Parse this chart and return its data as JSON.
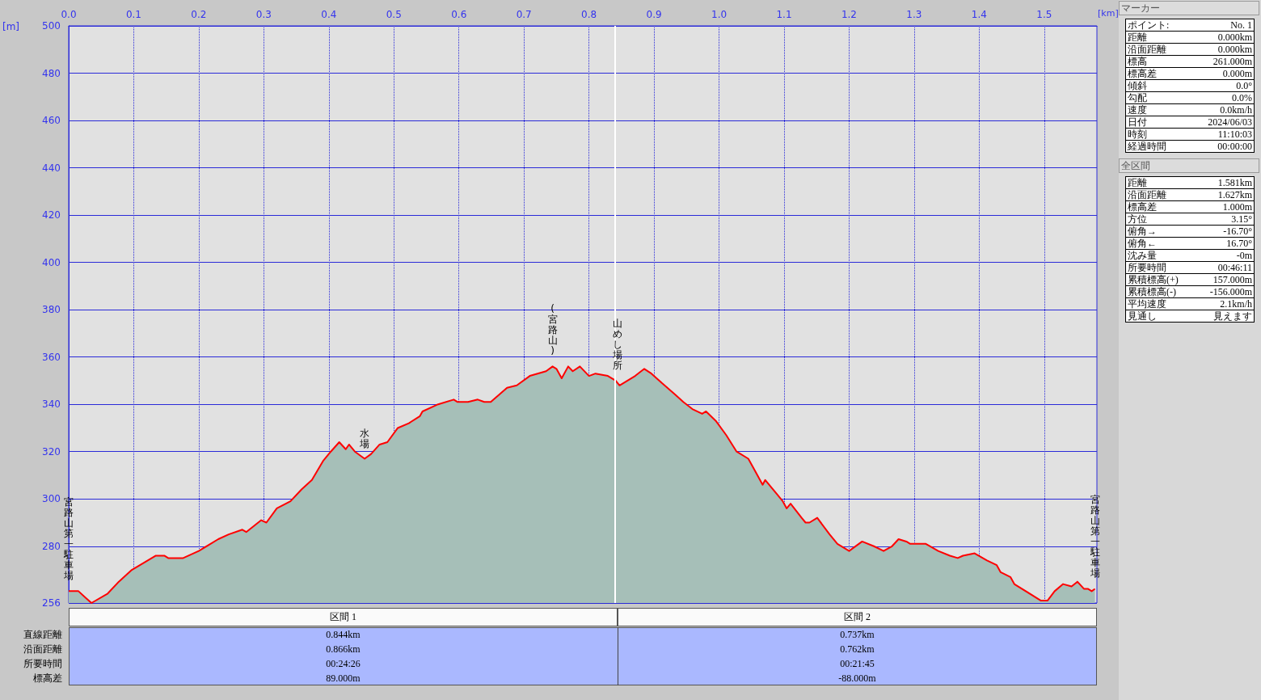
{
  "chart_data": [
    {
      "type": "area",
      "xlabel": "[km]",
      "ylabel": "[m]",
      "xlim": [
        0,
        1.581
      ],
      "ylim": [
        256,
        500
      ],
      "xticks": [
        {
          "value": 0,
          "label": "0.0"
        },
        0.1,
        0.2,
        0.3,
        0.4,
        0.5,
        0.6,
        0.7,
        0.8,
        0.9,
        {
          "value": 1,
          "label": "1.0"
        },
        1.1,
        1.2,
        1.3,
        1.4,
        1.5
      ],
      "yticks": [
        256,
        280,
        300,
        320,
        340,
        360,
        380,
        400,
        420,
        440,
        460,
        480,
        500
      ],
      "grid": true,
      "series": [
        {
          "color": "#ff0000",
          "x": [
            0,
            0.015,
            0.027,
            0.035,
            0.06,
            0.077,
            0.097,
            0.134,
            0.147,
            0.153,
            0.176,
            0.2,
            0.23,
            0.246,
            0.267,
            0.273,
            0.296,
            0.304,
            0.32,
            0.341,
            0.358,
            0.374,
            0.391,
            0.403,
            0.416,
            0.426,
            0.431,
            0.44,
            0.455,
            0.465,
            0.478,
            0.49,
            0.506,
            0.523,
            0.54,
            0.544,
            0.568,
            0.592,
            0.598,
            0.614,
            0.629,
            0.639,
            0.649,
            0.674,
            0.689,
            0.709,
            0.734,
            0.744,
            0.75,
            0.758,
            0.768,
            0.775,
            0.786,
            0.8,
            0.81,
            0.829,
            0.841,
            0.847,
            0.871,
            0.885,
            0.896,
            0.912,
            0.933,
            0.945,
            0.959,
            0.974,
            0.98,
            0.995,
            1.011,
            1.027,
            1.045,
            1.057,
            1.067,
            1.071,
            1.086,
            1.098,
            1.104,
            1.11,
            1.127,
            1.133,
            1.139,
            1.151,
            1.17,
            1.182,
            1.2,
            1.22,
            1.238,
            1.253,
            1.266,
            1.276,
            1.288,
            1.294,
            1.318,
            1.337,
            1.355,
            1.367,
            1.375,
            1.393,
            1.412,
            1.427,
            1.433,
            1.448,
            1.454,
            1.495,
            1.505,
            1.516,
            1.529,
            1.542,
            1.551,
            1.561,
            1.567,
            1.573,
            1.578
          ],
          "values": [
            261,
            261,
            258,
            256,
            260,
            265,
            270,
            276,
            276,
            275,
            275,
            278,
            283,
            285,
            287,
            286,
            291,
            290,
            296,
            299,
            304,
            308,
            316,
            320,
            324,
            321,
            323,
            320,
            317,
            319,
            323,
            324,
            330,
            332,
            335,
            337,
            340,
            342,
            341,
            341,
            342,
            341,
            341,
            347,
            348,
            352,
            354,
            356,
            355,
            351,
            356,
            354,
            356,
            352,
            353,
            352,
            350,
            348,
            352,
            355,
            353,
            349,
            344,
            341,
            338,
            336,
            337,
            333,
            327,
            320,
            317,
            311,
            306,
            308,
            303,
            299,
            296,
            298,
            292,
            290,
            290,
            292,
            285,
            281,
            278,
            282,
            280,
            278,
            280,
            283,
            282,
            281,
            281,
            278,
            276,
            275,
            276,
            277,
            274,
            272,
            269,
            267,
            264,
            257,
            257,
            261,
            264,
            263,
            265,
            262,
            262,
            261,
            262
          ]
        }
      ],
      "ref_lines": [
        {
          "axis": "x",
          "value": 0.844,
          "color": "#ffffff"
        }
      ],
      "annotations": [
        {
          "text": "宮路山第一駐車場",
          "x": 0,
          "y": 261
        },
        {
          "text": "水場",
          "x": 0.455,
          "y": 317
        },
        {
          "text": "(宮路山)",
          "x": 0.744,
          "y": 356
        },
        {
          "text": "山めし場所",
          "x": 0.844,
          "y": 350
        },
        {
          "text": "宮路山第一駐車場",
          "x": 1.578,
          "y": 262
        }
      ]
    },
    {
      "type": "other",
      "categories": [
        "区間 1",
        "区間 2"
      ],
      "y_categories": [
        "直線距離",
        "沿面距離",
        "所要時間",
        "標高差"
      ],
      "cell_labels": [
        [
          "0.844km",
          "0.737km"
        ],
        [
          "0.866km",
          "0.762km"
        ],
        [
          "00:24:26",
          "00:21:45"
        ],
        [
          "89.000m",
          "-88.000m"
        ]
      ]
    },
    {
      "type": "other",
      "title": "マーカー",
      "y_categories": [
        "ポイント:",
        "距離",
        "沿面距離",
        "標高",
        "標高差",
        "傾斜",
        "勾配",
        "速度",
        "日付",
        "時刻",
        "経過時間"
      ],
      "cell_labels": [
        [
          "No. 1"
        ],
        [
          "0.000km"
        ],
        [
          "0.000km"
        ],
        [
          "261.000m"
        ],
        [
          "0.000m"
        ],
        [
          "0.0°"
        ],
        [
          "0.0%"
        ],
        [
          "0.0km/h"
        ],
        [
          "2024/06/03"
        ],
        [
          "11:10:03"
        ],
        [
          "00:00:00"
        ]
      ]
    },
    {
      "type": "other",
      "title": "全区間",
      "y_categories": [
        "距離",
        "沿面距離",
        "標高差",
        "方位",
        "俯角→",
        "俯角←",
        "沈み量",
        "所要時間",
        "累積標高(+)",
        "累積標高(-)",
        "平均速度",
        "見通し"
      ],
      "cell_labels": [
        [
          "1.581km"
        ],
        [
          "1.627km"
        ],
        [
          "1.000m"
        ],
        [
          "3.15°"
        ],
        [
          "-16.70°"
        ],
        [
          "16.70°"
        ],
        [
          "-0m"
        ],
        [
          "00:46:11"
        ],
        [
          "157.000m"
        ],
        [
          "-156.000m"
        ],
        [
          "2.1km/h"
        ],
        [
          "見えます"
        ]
      ]
    }
  ]
}
